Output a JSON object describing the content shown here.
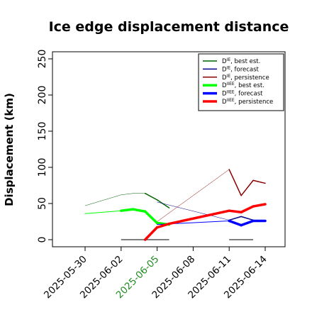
{
  "chart_data": {
    "type": "line",
    "title": "Ice edge displacement distance",
    "xlabel": "",
    "ylabel": "Displacement (km)",
    "ylim": [
      0,
      250
    ],
    "yticks": [
      0,
      50,
      100,
      150,
      200,
      250
    ],
    "xlim": [
      "2025-05-27",
      "2025-06-16"
    ],
    "xticks": [
      "2025-05-30",
      "2025-06-02",
      "2025-06-05",
      "2025-06-08",
      "2025-06-11",
      "2025-06-14"
    ],
    "highlight_tick": "2025-06-05",
    "highlight_color": "#228b22",
    "legend_position": "top-right",
    "grid": false,
    "series": [
      {
        "name": "D^IE, best est.",
        "color": "#006400",
        "weight": "thin",
        "x": [
          "2025-05-30",
          "2025-06-02",
          "2025-06-03",
          "2025-06-04",
          "2025-06-05",
          "2025-06-06"
        ],
        "y": [
          47,
          62,
          64,
          64,
          55,
          44
        ],
        "bold_from": 3
      },
      {
        "name": "D^IE, forecast",
        "color": "#00008b",
        "weight": "thin",
        "x": [
          "2025-06-05",
          "2025-06-11",
          "2025-06-12",
          "2025-06-13"
        ],
        "y": [
          52,
          27,
          32,
          27
        ],
        "bold_from": 1
      },
      {
        "name": "D^IE, persistence",
        "color": "#8b0000",
        "weight": "thin",
        "x": [
          "2025-06-05",
          "2025-06-11",
          "2025-06-12",
          "2025-06-13",
          "2025-06-14"
        ],
        "y": [
          25,
          97,
          61,
          82,
          78
        ],
        "bold_from": 1
      },
      {
        "name": "D^IIEE, best est.",
        "color": "#00ff00",
        "weight": "thick",
        "x": [
          "2025-05-30",
          "2025-06-02",
          "2025-06-03",
          "2025-06-04",
          "2025-06-05",
          "2025-06-06"
        ],
        "y": [
          36,
          40,
          42,
          39,
          23,
          21
        ],
        "bold_from": 1
      },
      {
        "name": "D^IIEE, forecast",
        "color": "#0000ff",
        "weight": "thick",
        "x": [
          "2025-06-05",
          "2025-06-11",
          "2025-06-12",
          "2025-06-13",
          "2025-06-14"
        ],
        "y": [
          21,
          26,
          20,
          26,
          26
        ],
        "bold_from": 1
      },
      {
        "name": "D^IIEE, persistence",
        "color": "#ff0000",
        "weight": "thick",
        "x": [
          "2025-06-04",
          "2025-06-05",
          "2025-06-06",
          "2025-06-11",
          "2025-06-12",
          "2025-06-13",
          "2025-06-14"
        ],
        "y": [
          0,
          17,
          22,
          40,
          38,
          46,
          49
        ],
        "bold_from": 0
      }
    ],
    "baselines": [
      {
        "x": [
          "2025-06-02",
          "2025-06-06"
        ],
        "y": 0,
        "color": "#555555"
      },
      {
        "x": [
          "2025-06-11",
          "2025-06-13"
        ],
        "y": 0,
        "color": "#555555"
      }
    ]
  }
}
